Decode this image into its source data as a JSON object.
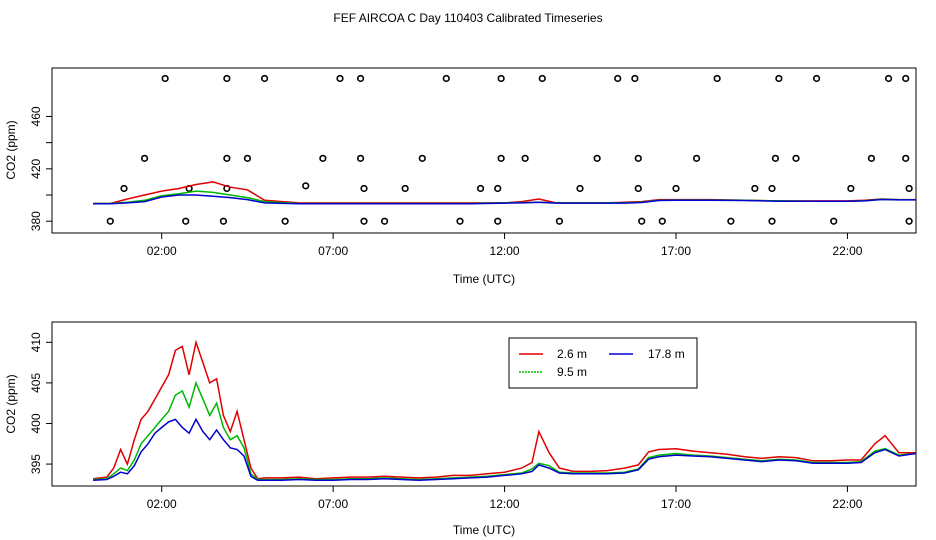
{
  "page_title": "FEF AIRCOA C  Day 110403  Calibrated Timeseries",
  "colors": {
    "series_2_6": "#e00000",
    "series_9_5": "#00b800",
    "series_17_8": "#0000d0",
    "points": "#000000"
  },
  "chart_data": [
    {
      "type": "scatter",
      "title": "",
      "xlabel": "Time (UTC)",
      "ylabel": "CO2 (ppm)",
      "xlim": [
        -1.2,
        24.0
      ],
      "ylim": [
        371,
        497
      ],
      "xticks": [
        2,
        7,
        12,
        17,
        22
      ],
      "xtick_labels": [
        "02:00",
        "07:00",
        "12:00",
        "17:00",
        "22:00"
      ],
      "yticks": [
        380,
        420,
        460
      ],
      "ytick_labels": [
        "380",
        "420",
        "460"
      ],
      "extra_yticks": [
        400,
        440
      ],
      "points": [
        [
          0.5,
          380
        ],
        [
          0.9,
          405
        ],
        [
          1.5,
          428
        ],
        [
          2.1,
          489
        ],
        [
          2.8,
          405
        ],
        [
          2.7,
          380
        ],
        [
          3.8,
          380
        ],
        [
          3.9,
          405
        ],
        [
          3.9,
          428
        ],
        [
          3.9,
          489
        ],
        [
          4.5,
          428
        ],
        [
          5.0,
          489
        ],
        [
          5.6,
          380
        ],
        [
          6.2,
          407
        ],
        [
          6.7,
          428
        ],
        [
          7.2,
          489
        ],
        [
          7.8,
          489
        ],
        [
          7.8,
          428
        ],
        [
          7.9,
          405
        ],
        [
          7.9,
          380
        ],
        [
          8.5,
          380
        ],
        [
          9.1,
          405
        ],
        [
          9.6,
          428
        ],
        [
          10.3,
          489
        ],
        [
          10.7,
          380
        ],
        [
          11.3,
          405
        ],
        [
          11.8,
          380
        ],
        [
          11.8,
          405
        ],
        [
          11.9,
          428
        ],
        [
          11.9,
          489
        ],
        [
          12.6,
          428
        ],
        [
          13.1,
          489
        ],
        [
          13.6,
          380
        ],
        [
          14.2,
          405
        ],
        [
          14.7,
          428
        ],
        [
          15.3,
          489
        ],
        [
          15.8,
          489
        ],
        [
          15.9,
          428
        ],
        [
          15.9,
          405
        ],
        [
          16.0,
          380
        ],
        [
          16.6,
          380
        ],
        [
          17.0,
          405
        ],
        [
          17.6,
          428
        ],
        [
          18.2,
          489
        ],
        [
          18.6,
          380
        ],
        [
          19.3,
          405
        ],
        [
          19.8,
          380
        ],
        [
          19.8,
          405
        ],
        [
          19.9,
          428
        ],
        [
          20.0,
          489
        ],
        [
          20.5,
          428
        ],
        [
          21.1,
          489
        ],
        [
          21.6,
          380
        ],
        [
          22.1,
          405
        ],
        [
          22.7,
          428
        ],
        [
          23.2,
          489
        ],
        [
          23.7,
          489
        ],
        [
          23.7,
          428
        ],
        [
          23.8,
          405
        ],
        [
          23.8,
          380
        ]
      ],
      "x": [
        0.0,
        0.5,
        1.0,
        1.5,
        2.0,
        2.5,
        3.0,
        3.5,
        4.0,
        4.5,
        5.0,
        6.0,
        7.0,
        8.0,
        9.0,
        10.0,
        11.0,
        12.0,
        12.5,
        13.0,
        13.5,
        14.0,
        15.0,
        15.5,
        16.0,
        16.5,
        17.0,
        18.0,
        19.0,
        20.0,
        21.0,
        22.0,
        22.5,
        23.0,
        23.5,
        24.0
      ],
      "series": [
        {
          "name": "2.6 m",
          "values": [
            393.5,
            393.5,
            397,
            400,
            403,
            405,
            408,
            410,
            406,
            404,
            396,
            394,
            394,
            394,
            394,
            394,
            394,
            394,
            395,
            397,
            394,
            394,
            394,
            394.5,
            395,
            396.5,
            396.5,
            396.5,
            396,
            395.5,
            395.5,
            395.5,
            396,
            397,
            396.5,
            396.5
          ]
        },
        {
          "name": "9.5 m",
          "values": [
            393.5,
            393.5,
            394.5,
            396,
            399.5,
            401,
            403,
            402,
            400,
            398,
            395,
            393.5,
            393.5,
            393.5,
            393.5,
            393.5,
            393.5,
            394,
            394.2,
            394.5,
            394,
            394,
            394,
            394,
            394.5,
            396,
            396.2,
            396.2,
            396,
            395.5,
            395.3,
            395.3,
            395.7,
            396.8,
            396.4,
            396.4
          ]
        },
        {
          "name": "17.8 m",
          "values": [
            393.3,
            393.3,
            394,
            395,
            398.5,
            400,
            400,
            399,
            398,
            396.5,
            394,
            393.3,
            393.3,
            393.3,
            393.3,
            393.3,
            393.3,
            393.8,
            394,
            394.5,
            393.8,
            393.8,
            393.8,
            393.8,
            394.3,
            395.8,
            396,
            396,
            395.8,
            395.3,
            395.2,
            395.2,
            395.5,
            396.6,
            396.3,
            396.3
          ]
        }
      ]
    },
    {
      "type": "line",
      "title": "",
      "xlabel": "Time (UTC)",
      "ylabel": "CO2 (ppm)",
      "xlim": [
        -1.2,
        24.0
      ],
      "ylim": [
        392.3,
        412.5
      ],
      "xticks": [
        2,
        7,
        12,
        17,
        22
      ],
      "xtick_labels": [
        "02:00",
        "07:00",
        "12:00",
        "17:00",
        "22:00"
      ],
      "yticks": [
        395,
        400,
        405,
        410
      ],
      "ytick_labels": [
        "395",
        "400",
        "405",
        "410"
      ],
      "legend": {
        "placement": "top-center",
        "entries": [
          "2.6 m",
          "9.5 m",
          "17.8 m"
        ]
      },
      "x": [
        0.0,
        0.4,
        0.6,
        0.8,
        1.0,
        1.2,
        1.4,
        1.6,
        1.8,
        2.0,
        2.2,
        2.4,
        2.6,
        2.8,
        3.0,
        3.2,
        3.4,
        3.6,
        3.8,
        4.0,
        4.2,
        4.4,
        4.6,
        4.8,
        5.0,
        5.5,
        6.0,
        6.5,
        7.0,
        7.5,
        8.0,
        8.5,
        9.0,
        9.5,
        10.0,
        10.5,
        11.0,
        11.5,
        12.0,
        12.5,
        12.8,
        13.0,
        13.3,
        13.6,
        14.0,
        14.5,
        15.0,
        15.5,
        15.9,
        16.2,
        16.5,
        17.0,
        17.5,
        18.0,
        18.5,
        19.0,
        19.5,
        20.0,
        20.5,
        21.0,
        21.5,
        22.0,
        22.4,
        22.8,
        23.1,
        23.5,
        24.0
      ],
      "series": [
        {
          "name": "2.6 m",
          "values": [
            393.2,
            393.4,
            394.5,
            396.8,
            395.0,
            398.0,
            400.5,
            401.5,
            403.0,
            404.5,
            406.0,
            409.0,
            409.5,
            406.0,
            410.0,
            407.5,
            405.0,
            405.5,
            401.0,
            399.0,
            401.5,
            398.0,
            394.5,
            393.2,
            393.3,
            393.3,
            393.4,
            393.2,
            393.3,
            393.4,
            393.4,
            393.5,
            393.4,
            393.3,
            393.4,
            393.6,
            393.6,
            393.8,
            394.0,
            394.5,
            395.2,
            399.0,
            396.4,
            394.5,
            394.1,
            394.1,
            394.2,
            394.5,
            394.9,
            396.5,
            396.8,
            396.9,
            396.6,
            396.4,
            396.2,
            395.9,
            395.7,
            395.9,
            395.8,
            395.4,
            395.4,
            395.5,
            395.5,
            397.5,
            398.5,
            396.4,
            396.4
          ]
        },
        {
          "name": "9.5 m",
          "values": [
            393.1,
            393.2,
            393.8,
            394.5,
            394.2,
            395.5,
            397.5,
            398.5,
            399.5,
            400.5,
            401.5,
            403.5,
            404.0,
            402.0,
            405.0,
            403.0,
            401.0,
            402.5,
            399.5,
            398.0,
            398.5,
            397.0,
            393.8,
            393.1,
            393.1,
            393.1,
            393.2,
            393.1,
            393.1,
            393.2,
            393.2,
            393.3,
            393.2,
            393.1,
            393.2,
            393.3,
            393.4,
            393.5,
            393.7,
            393.9,
            394.4,
            395.1,
            394.8,
            394.0,
            393.9,
            393.9,
            393.9,
            394.0,
            394.4,
            395.8,
            396.1,
            396.3,
            396.1,
            396.0,
            395.8,
            395.6,
            395.4,
            395.6,
            395.5,
            395.2,
            395.2,
            395.2,
            395.3,
            396.6,
            396.9,
            396.1,
            396.3
          ]
        },
        {
          "name": "17.8 m",
          "values": [
            393.0,
            393.1,
            393.5,
            394.0,
            393.8,
            394.8,
            396.5,
            397.5,
            398.8,
            399.5,
            400.2,
            400.5,
            399.5,
            398.8,
            400.5,
            399.0,
            398.0,
            399.2,
            398.0,
            397.0,
            396.8,
            396.0,
            393.5,
            393.0,
            393.0,
            393.0,
            393.1,
            393.0,
            393.0,
            393.1,
            393.1,
            393.2,
            393.1,
            393.0,
            393.1,
            393.2,
            393.3,
            393.4,
            393.6,
            393.8,
            394.1,
            394.9,
            394.5,
            393.9,
            393.8,
            393.8,
            393.8,
            393.9,
            394.3,
            395.6,
            395.9,
            396.1,
            396.0,
            395.9,
            395.7,
            395.5,
            395.3,
            395.5,
            395.4,
            395.1,
            395.1,
            395.1,
            395.2,
            396.4,
            396.8,
            396.0,
            396.3
          ]
        }
      ]
    }
  ]
}
